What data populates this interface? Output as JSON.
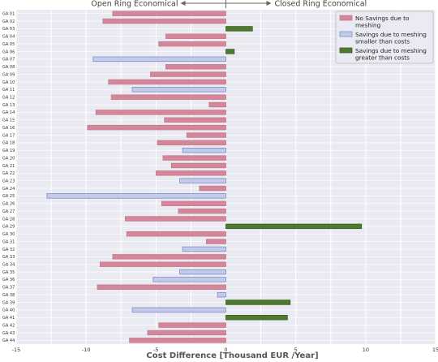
{
  "chart_data": {
    "type": "bar",
    "orientation": "horizontal",
    "xlabel": "Cost Difference [Thousand EUR /Year]",
    "xlim": [
      -15,
      15
    ],
    "xticks": [
      -15,
      -10,
      -5,
      0,
      5,
      10,
      15
    ],
    "grid": true,
    "legend_position": "top-right",
    "annotations": {
      "left": "Open Ring Economical",
      "right": "Closed Ring Economical"
    },
    "series": [
      {
        "name": "No Savings due to meshing",
        "color": "#c77a8a",
        "fill": "#d4879a"
      },
      {
        "name": "Savings due to meshing smaller than costs",
        "color": "#7f8bc4",
        "fill": "#c3cbea"
      },
      {
        "name": "Savings due to meshing greater than costs",
        "color": "#3a5f20",
        "fill": "#4d7a2e"
      }
    ],
    "categories": [
      "GA 01",
      "GA 02",
      "GA 03",
      "GA 04",
      "GA 05",
      "GA 06",
      "GA 07",
      "GA 08",
      "GA 09",
      "GA 10",
      "GA 11",
      "GA 12",
      "GA 13",
      "GA 14",
      "GA 15",
      "GA 16",
      "GA 17",
      "GA 18",
      "GA 19",
      "GA 20",
      "GA 21",
      "GA 22",
      "GA 23",
      "GA 24",
      "GA 25",
      "GA 26",
      "GA 27",
      "GA 28",
      "GA 29",
      "GA 30",
      "GA 31",
      "GA 32",
      "GA 33",
      "GA 34",
      "GA 35",
      "GA 36",
      "GA 37",
      "GA 38",
      "GA 39",
      "GA 40",
      "GA 41",
      "GA 42",
      "GA 43",
      "GA 44"
    ],
    "values": [
      -8.1,
      -8.8,
      1.9,
      -4.3,
      -4.8,
      0.6,
      -9.5,
      -4.3,
      -5.4,
      -8.4,
      -6.7,
      -8.2,
      -1.2,
      -9.3,
      -4.4,
      -9.9,
      -2.8,
      -4.9,
      -3.1,
      -4.5,
      -3.9,
      -5.0,
      -3.3,
      -1.9,
      -12.8,
      -4.6,
      -3.4,
      -7.2,
      9.7,
      -7.1,
      -1.4,
      -3.1,
      -8.1,
      -9.0,
      -3.3,
      -5.2,
      -9.2,
      -0.6,
      4.6,
      -6.7,
      4.4,
      -4.8,
      -5.6,
      -6.9
    ],
    "series_index": [
      0,
      0,
      2,
      0,
      0,
      2,
      1,
      0,
      0,
      0,
      1,
      0,
      0,
      0,
      0,
      0,
      0,
      0,
      1,
      0,
      0,
      0,
      1,
      0,
      1,
      0,
      0,
      0,
      2,
      0,
      0,
      1,
      0,
      0,
      1,
      1,
      0,
      1,
      2,
      1,
      2,
      0,
      0,
      0
    ]
  }
}
